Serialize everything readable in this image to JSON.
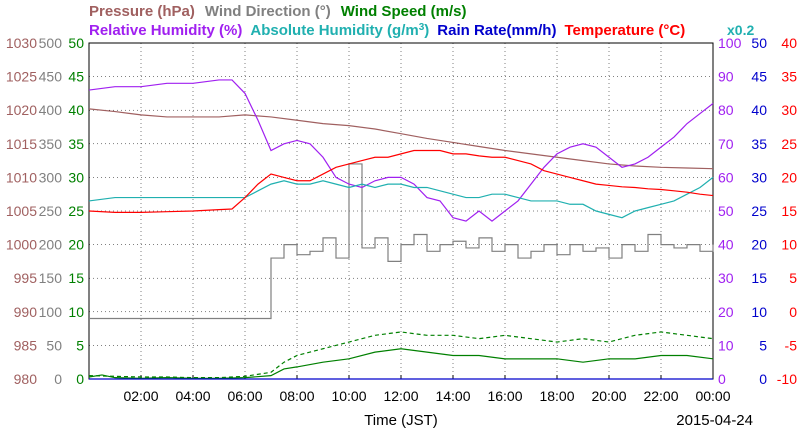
{
  "chart_data": {
    "type": "line",
    "date_label": "2015-04-24",
    "xlabel": "Time (JST)",
    "x_ticks": [
      "02:00",
      "04:00",
      "06:00",
      "08:00",
      "10:00",
      "12:00",
      "14:00",
      "16:00",
      "18:00",
      "20:00",
      "22:00",
      "00:00"
    ],
    "x_range_hours": [
      0,
      24
    ],
    "grid": true,
    "legend": {
      "row1": [
        {
          "text": "Pressure (hPa)",
          "color": "#a06060"
        },
        {
          "text": "Wind Direction (°)",
          "color": "#808080"
        },
        {
          "text": "Wind Speed (m/s)",
          "color": "#008000"
        }
      ],
      "row2": [
        {
          "text": "Relative Humidity (%)",
          "color": "#a020f0"
        },
        {
          "text": "Absolute Humidity (g/m",
          "color": "#20b0b0",
          "sup": "3",
          "after": ")"
        },
        {
          "text": "Rain Rate(mm/h)",
          "color": "#0000cc"
        },
        {
          "text": "Temperature (°C)",
          "color": "#ff0000"
        }
      ],
      "multiplier": "x0.2"
    },
    "axes": {
      "pressure": {
        "ticks": [
          "1030",
          "1025",
          "1020",
          "1015",
          "1010",
          "1005",
          "1000",
          "995",
          "990",
          "985",
          "980"
        ],
        "range": [
          980,
          1030
        ],
        "color": "#a06060"
      },
      "wind_direction": {
        "ticks": [
          "500",
          "450",
          "400",
          "350",
          "300",
          "250",
          "200",
          "150",
          "100",
          "50",
          "0"
        ],
        "range": [
          0,
          500
        ],
        "color": "#808080"
      },
      "wind_speed": {
        "ticks": [
          "50",
          "45",
          "40",
          "35",
          "30",
          "25",
          "20",
          "15",
          "10",
          "5",
          "0"
        ],
        "range": [
          0,
          50
        ],
        "color": "#008000"
      },
      "humidity": {
        "ticks": [
          "100",
          "90",
          "80",
          "70",
          "60",
          "50",
          "40",
          "30",
          "20",
          "10",
          "0"
        ],
        "range": [
          0,
          100
        ],
        "color": "#a020f0"
      },
      "rain_rate": {
        "ticks": [
          "50",
          "45",
          "40",
          "35",
          "30",
          "25",
          "20",
          "15",
          "10",
          "5",
          "0"
        ],
        "range": [
          0,
          50
        ],
        "color": "#0000cc"
      },
      "temperature": {
        "ticks": [
          "40",
          "35",
          "30",
          "25",
          "20",
          "15",
          "10",
          "5",
          "0",
          "-5",
          "-10"
        ],
        "range": [
          -10,
          40
        ],
        "color": "#ff0000"
      }
    },
    "series": [
      {
        "name": "Pressure (hPa)",
        "color": "#a06060",
        "axis": "pressure",
        "x": [
          0,
          1,
          2,
          3,
          4,
          5,
          6,
          7,
          8,
          9,
          10,
          11,
          12,
          13,
          14,
          15,
          16,
          17,
          18,
          19,
          20,
          21,
          22,
          23,
          24
        ],
        "y": [
          1020.2,
          1019.8,
          1019.3,
          1019.0,
          1019.0,
          1019.0,
          1019.3,
          1019.0,
          1018.5,
          1018.0,
          1017.7,
          1017.2,
          1016.5,
          1015.8,
          1015.2,
          1014.6,
          1014.0,
          1013.5,
          1013.0,
          1012.5,
          1012.0,
          1011.7,
          1011.5,
          1011.4,
          1011.3
        ]
      },
      {
        "name": "Wind Direction (°)",
        "color": "#808080",
        "axis": "wind_direction",
        "style": "step",
        "x": [
          0,
          6.9,
          7.0,
          7.5,
          8.0,
          8.5,
          9.0,
          9.5,
          10.0,
          10.5,
          11.0,
          11.5,
          12.0,
          12.5,
          13.0,
          13.5,
          14.0,
          14.5,
          15.0,
          15.5,
          16.0,
          16.5,
          17.0,
          17.5,
          18.0,
          18.5,
          19.0,
          19.5,
          20.0,
          20.5,
          21.0,
          21.5,
          22.0,
          22.5,
          23.0,
          23.5,
          24.0
        ],
        "y": [
          90,
          90,
          180,
          200,
          185,
          190,
          210,
          180,
          320,
          195,
          210,
          175,
          200,
          215,
          190,
          200,
          205,
          195,
          210,
          190,
          200,
          180,
          190,
          200,
          185,
          200,
          190,
          195,
          180,
          200,
          190,
          215,
          200,
          195,
          200,
          190,
          200
        ]
      },
      {
        "name": "Wind Speed (m/s)",
        "color": "#008000",
        "axis": "wind_speed",
        "x": [
          0,
          0.5,
          1,
          2,
          3,
          4,
          5,
          6,
          7,
          7.5,
          8,
          9,
          10,
          11,
          12,
          13,
          14,
          15,
          16,
          17,
          18,
          19,
          20,
          21,
          22,
          23,
          24
        ],
        "y": [
          0.3,
          0.6,
          0.2,
          0.1,
          0.2,
          0.1,
          0.1,
          0.2,
          0.5,
          1.5,
          1.8,
          2.5,
          3.0,
          4.0,
          4.5,
          4.0,
          3.5,
          3.5,
          3.0,
          3.0,
          3.0,
          2.5,
          3.0,
          3.0,
          3.5,
          3.5,
          3.0
        ]
      },
      {
        "name": "Wind Gust (m/s)",
        "color": "#008000",
        "axis": "wind_speed",
        "dashed": true,
        "x": [
          0,
          1,
          2,
          3,
          4,
          5,
          6,
          7,
          7.5,
          8,
          9,
          10,
          11,
          12,
          13,
          14,
          15,
          16,
          17,
          18,
          19,
          20,
          21,
          22,
          23,
          24
        ],
        "y": [
          0.5,
          0.4,
          0.3,
          0.3,
          0.2,
          0.2,
          0.4,
          1.0,
          2.5,
          3.5,
          4.5,
          5.5,
          6.5,
          7.0,
          6.5,
          6.5,
          6.0,
          6.5,
          6.0,
          5.5,
          6.0,
          5.5,
          6.5,
          7.0,
          6.5,
          6.0
        ]
      },
      {
        "name": "Relative Humidity (%)",
        "color": "#a020f0",
        "axis": "humidity",
        "x": [
          0,
          1,
          2,
          3,
          4,
          5,
          5.5,
          6,
          6.5,
          7,
          7.5,
          8,
          8.5,
          9,
          9.5,
          10,
          10.5,
          11,
          11.5,
          12,
          12.5,
          13,
          13.5,
          14,
          14.5,
          15,
          15.5,
          16,
          16.5,
          17,
          17.5,
          18,
          18.5,
          19,
          19.5,
          20,
          20.5,
          21,
          21.5,
          22,
          22.5,
          23,
          23.5,
          24
        ],
        "y": [
          86,
          87,
          87,
          88,
          88,
          89,
          89,
          85,
          77,
          68,
          70,
          71,
          70,
          66,
          60,
          58,
          57,
          59,
          60,
          60,
          58,
          54,
          53,
          48,
          47,
          50,
          47,
          50,
          53,
          58,
          63,
          67,
          69,
          70,
          69,
          66,
          63,
          64,
          66,
          69,
          72,
          76,
          79,
          82
        ]
      },
      {
        "name": "Absolute Humidity (g/m3)",
        "color": "#20b0b0",
        "axis": "humidity",
        "note": "x0.2",
        "x": [
          0,
          1,
          2,
          3,
          4,
          5,
          6,
          6.5,
          7,
          7.5,
          8,
          8.5,
          9,
          9.5,
          10,
          10.5,
          11,
          11.5,
          12,
          12.5,
          13,
          13.5,
          14,
          14.5,
          15,
          15.5,
          16,
          16.5,
          17,
          17.5,
          18,
          18.5,
          19,
          19.5,
          20,
          20.5,
          21,
          21.5,
          22,
          22.5,
          23,
          23.5,
          24
        ],
        "y": [
          53,
          54,
          54,
          54,
          54,
          54,
          54,
          56,
          58,
          59,
          58,
          58,
          59,
          58,
          57,
          58,
          57,
          58,
          58,
          57,
          57,
          56,
          55,
          54,
          54,
          55,
          55,
          54,
          53,
          53,
          53,
          52,
          52,
          50,
          49,
          48,
          50,
          51,
          52,
          53,
          55,
          57,
          60
        ]
      },
      {
        "name": "Rain Rate(mm/h)",
        "color": "#0000cc",
        "axis": "rain_rate",
        "x": [
          0,
          24
        ],
        "y": [
          0,
          0
        ]
      },
      {
        "name": "Temperature (°C)",
        "color": "#ff0000",
        "axis": "temperature",
        "x": [
          0,
          1,
          2,
          3,
          4,
          5,
          5.5,
          6,
          6.5,
          7,
          7.5,
          8,
          8.5,
          9,
          9.5,
          10,
          10.5,
          11,
          11.5,
          12,
          12.5,
          13,
          13.5,
          14,
          14.5,
          15,
          15.5,
          16,
          16.5,
          17,
          17.5,
          18,
          18.5,
          19,
          19.5,
          20,
          20.5,
          21,
          21.5,
          22,
          22.5,
          23,
          23.5,
          24
        ],
        "y": [
          15,
          14.8,
          14.8,
          14.9,
          15,
          15.2,
          15.3,
          17,
          19,
          20.5,
          20,
          19.5,
          19.5,
          20.5,
          21.5,
          22,
          22.5,
          23,
          23,
          23.5,
          24,
          24,
          24,
          23.5,
          23.5,
          23.2,
          23,
          23,
          22.5,
          22,
          21,
          20.5,
          20,
          19.5,
          19,
          18.8,
          18.6,
          18.5,
          18.3,
          18.2,
          18,
          17.8,
          17.5,
          17.3
        ]
      }
    ]
  }
}
